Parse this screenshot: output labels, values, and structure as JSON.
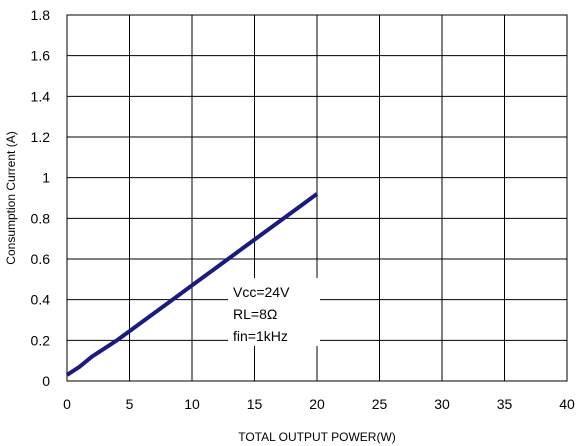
{
  "chart_data": {
    "type": "line",
    "title": "",
    "xlabel": "TOTAL OUTPUT POWER(W)",
    "ylabel": "Consumption Current (A)",
    "xlim": [
      0,
      40
    ],
    "ylim": [
      0,
      1.8
    ],
    "x_ticks": [
      "0",
      "5",
      "10",
      "15",
      "20",
      "25",
      "30",
      "35",
      "40"
    ],
    "y_ticks": [
      "0",
      "0.2",
      "0.4",
      "0.6",
      "0.8",
      "1",
      "1.2",
      "1.4",
      "1.6",
      "1.8"
    ],
    "grid": true,
    "series": [
      {
        "color": "#1a1a80",
        "x": [
          0,
          1,
          2,
          4,
          6,
          8,
          10,
          12,
          14,
          16,
          18,
          20
        ],
        "y": [
          0.03,
          0.07,
          0.12,
          0.2,
          0.29,
          0.38,
          0.47,
          0.56,
          0.65,
          0.74,
          0.83,
          0.92
        ]
      }
    ],
    "annotations": [
      "Vcc=24V",
      "RL=8Ω",
      "fin=1kHz"
    ]
  }
}
